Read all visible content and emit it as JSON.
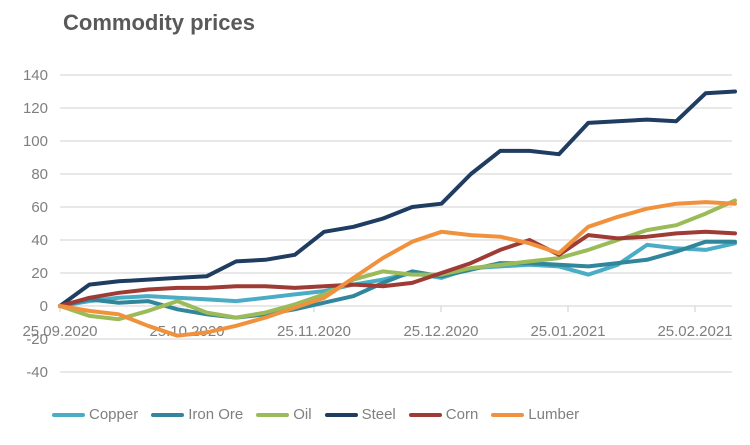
{
  "title": "Commodity prices",
  "colors": {
    "background": "#ffffff",
    "title_text": "#595959",
    "axis_label_text": "#7f7f7f",
    "gridline": "#d9d9d9",
    "legend_text": "#7f7f7f"
  },
  "chart_data": {
    "type": "line",
    "title": "Commodity prices",
    "xlabel": "",
    "ylabel": "",
    "ylim": [
      -40,
      140
    ],
    "y_ticks": [
      140,
      120,
      100,
      80,
      60,
      40,
      20,
      0,
      -20,
      -40
    ],
    "x_tick_labels": [
      "25.09.2020",
      "25.10.2020",
      "25.11.2020",
      "25.12.2020",
      "25.01.2021",
      "25.02.2021"
    ],
    "grid": true,
    "legend_position": "bottom",
    "x_note": "weekly data points from 25.09.2020, indexed 0-23",
    "series": [
      {
        "name": "Copper",
        "color": "#4bacc6",
        "values": [
          0,
          3,
          5,
          6,
          5,
          4,
          3,
          5,
          7,
          9,
          13,
          16,
          20,
          17,
          23,
          24,
          25,
          24,
          19,
          25,
          37,
          35,
          34,
          38
        ]
      },
      {
        "name": "Iron Ore",
        "color": "#31869b",
        "values": [
          0,
          4,
          2,
          3,
          -2,
          -5,
          -7,
          -5,
          -2,
          2,
          6,
          14,
          21,
          18,
          22,
          26,
          26,
          25,
          24,
          26,
          28,
          33,
          39,
          39
        ]
      },
      {
        "name": "Oil",
        "color": "#9bbb59",
        "values": [
          0,
          -6,
          -8,
          -3,
          3,
          -4,
          -7,
          -4,
          1,
          7,
          16,
          21,
          19,
          19,
          23,
          25,
          27,
          29,
          34,
          40,
          46,
          49,
          56,
          64
        ]
      },
      {
        "name": "Steel",
        "color": "#1f3c61",
        "values": [
          0,
          13,
          15,
          16,
          17,
          18,
          27,
          28,
          31,
          45,
          48,
          53,
          60,
          62,
          80,
          94,
          94,
          92,
          111,
          112,
          113,
          112,
          129,
          130
        ]
      },
      {
        "name": "Corn",
        "color": "#9e3b35",
        "values": [
          0,
          5,
          8,
          10,
          11,
          11,
          12,
          12,
          11,
          12,
          13,
          12,
          14,
          20,
          26,
          34,
          40,
          31,
          43,
          41,
          42,
          44,
          45,
          44
        ]
      },
      {
        "name": "Lumber",
        "color": "#f0913e",
        "values": [
          0,
          -3,
          -5,
          -12,
          -18,
          -16,
          -12,
          -7,
          -1,
          5,
          17,
          29,
          39,
          45,
          43,
          42,
          38,
          32,
          48,
          54,
          59,
          62,
          63,
          62
        ]
      }
    ]
  }
}
